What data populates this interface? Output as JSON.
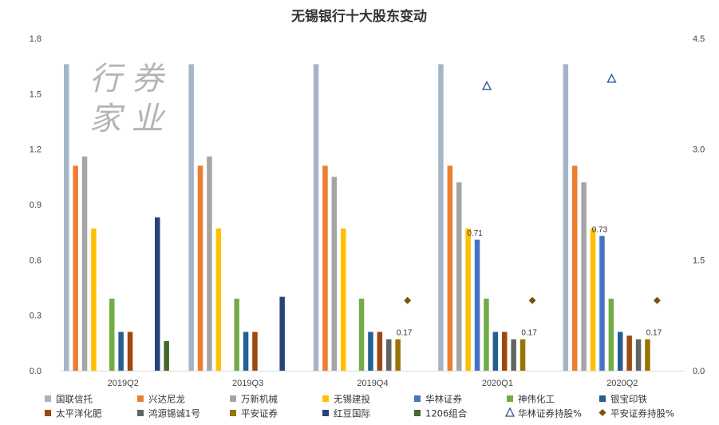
{
  "chart_data": {
    "type": "bar",
    "title": "无锡银行十大股东变动",
    "categories": [
      "2019Q2",
      "2019Q3",
      "2019Q4",
      "2020Q1",
      "2020Q2"
    ],
    "y_left": {
      "ylim": [
        0.0,
        1.8
      ],
      "ticks": [
        "0.0",
        "0.3",
        "0.6",
        "0.9",
        "1.2",
        "1.5",
        "1.8"
      ]
    },
    "y_right": {
      "ylim": [
        0.0,
        4.5
      ],
      "ticks": [
        "0.0",
        "1.5",
        "3.0",
        "4.5"
      ]
    },
    "grid": false,
    "legend_position": "bottom",
    "series": [
      {
        "name": "国联信托",
        "color": "#a5b5c8",
        "values": [
          1.66,
          1.66,
          1.66,
          1.66,
          1.66
        ]
      },
      {
        "name": "兴达尼龙",
        "color": "#ed7d31",
        "values": [
          1.11,
          1.11,
          1.11,
          1.11,
          1.11
        ]
      },
      {
        "name": "万新机械",
        "color": "#a5a5a5",
        "values": [
          1.16,
          1.16,
          1.05,
          1.02,
          1.02
        ]
      },
      {
        "name": "无锡建投",
        "color": "#ffc000",
        "values": [
          0.77,
          0.77,
          0.77,
          0.77,
          0.77
        ]
      },
      {
        "name": "华林证券",
        "color": "#4472c4",
        "values": [
          null,
          null,
          null,
          0.71,
          0.73
        ]
      },
      {
        "name": "神伟化工",
        "color": "#70ad47",
        "values": [
          0.39,
          0.39,
          0.39,
          0.39,
          0.39
        ]
      },
      {
        "name": "银宝印铁",
        "color": "#255e91",
        "values": [
          0.21,
          0.21,
          0.21,
          0.21,
          0.21
        ]
      },
      {
        "name": "太平洋化肥",
        "color": "#9e480e",
        "values": [
          0.21,
          0.21,
          0.21,
          0.21,
          0.19
        ]
      },
      {
        "name": "鸿源锡诚1号",
        "color": "#636363",
        "values": [
          null,
          null,
          0.17,
          0.17,
          0.17
        ]
      },
      {
        "name": "平安证券",
        "color": "#997300",
        "values": [
          null,
          null,
          0.17,
          0.17,
          0.17
        ]
      },
      {
        "name": "红豆国际",
        "color": "#264478",
        "values": [
          0.83,
          0.4,
          null,
          null,
          null
        ]
      },
      {
        "name": "1206组合",
        "color": "#43682b",
        "values": [
          0.16,
          null,
          null,
          null,
          null
        ]
      }
    ],
    "markers": [
      {
        "name": "华林证券持股%",
        "symbol": "triangle",
        "color": "#2e5597",
        "axis": "right",
        "values": [
          null,
          null,
          null,
          3.85,
          3.95
        ]
      },
      {
        "name": "平安证券持股%",
        "symbol": "diamond",
        "color": "#7f4e0c",
        "axis": "right",
        "values": [
          null,
          null,
          0.95,
          0.95,
          0.95
        ]
      }
    ],
    "data_labels": [
      {
        "category": "2019Q4",
        "series": "平安证券",
        "text": "0.17"
      },
      {
        "category": "2020Q1",
        "series": "华林证券",
        "text": "0.71"
      },
      {
        "category": "2020Q1",
        "series": "平安证券",
        "text": "0.17"
      },
      {
        "category": "2020Q2",
        "series": "华林证券",
        "text": "0.73"
      },
      {
        "category": "2020Q2",
        "series": "平安证券",
        "text": "0.17"
      }
    ]
  },
  "watermark": {
    "line1": "行 券",
    "line2": "家 业"
  }
}
